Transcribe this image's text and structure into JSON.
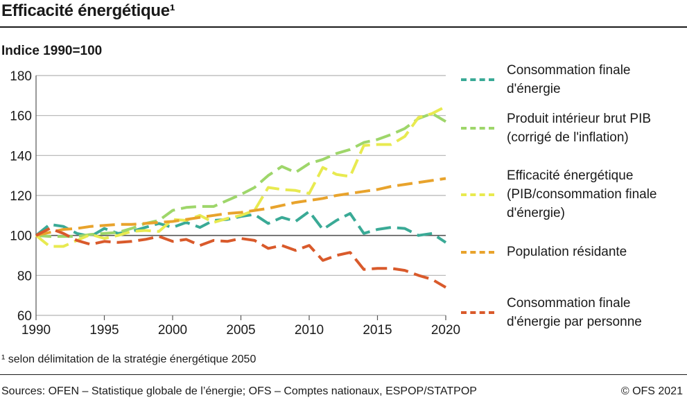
{
  "header": {
    "title": "Efficacité énergétique¹",
    "subtitle": "Indice 1990=100"
  },
  "footer": {
    "footnote": "¹ selon délimitation de la stratégie énergétique 2050",
    "source": "Sources: OFEN – Statistique globale de l’énergie; OFS – Comptes nationaux, ESPOP/STATPOP",
    "copyright": "© OFS 2021"
  },
  "chart_data": {
    "type": "line",
    "title": "Efficacité énergétique¹",
    "ylabel": "Indice 1990=100",
    "xlim": [
      1990,
      2020
    ],
    "ylim": [
      60,
      180
    ],
    "yticks": [
      60,
      80,
      100,
      120,
      140,
      160,
      180
    ],
    "xticks": [
      1990,
      1995,
      2000,
      2005,
      2010,
      2015,
      2020
    ],
    "grid": "horizontal",
    "baseline": 100,
    "legend_position": "right",
    "x": [
      1990,
      1991,
      1992,
      1993,
      1994,
      1995,
      1996,
      1997,
      1998,
      1999,
      2000,
      2001,
      2002,
      2003,
      2004,
      2005,
      2006,
      2007,
      2008,
      2009,
      2010,
      2011,
      2012,
      2013,
      2014,
      2015,
      2016,
      2017,
      2018,
      2019,
      2020
    ],
    "series": [
      {
        "name": "Consommation finale d'énergie",
        "color": "#3aaa96",
        "values": [
          100,
          105.5,
          104.5,
          101,
          99.5,
          103.5,
          101,
          102,
          104,
          106,
          104,
          106.5,
          104,
          107.5,
          108,
          109.5,
          110.5,
          106,
          109,
          107,
          112,
          103,
          107.5,
          111,
          101,
          103,
          104,
          103.5,
          100,
          101,
          96.5
        ]
      },
      {
        "name": "Produit intérieur brut PIB (corrigé de l'inflation)",
        "color": "#9ed66a",
        "values": [
          100,
          99.5,
          99.5,
          99.5,
          100.5,
          101,
          101.5,
          103.5,
          106,
          107.5,
          112.5,
          114,
          114.5,
          114.5,
          117.5,
          120.5,
          124,
          130,
          134.5,
          131.5,
          136,
          138,
          141,
          143,
          146.5,
          148,
          150.5,
          153.5,
          158.5,
          161,
          157
        ]
      },
      {
        "name": "Efficacité énergétique (PIB/consommation finale d'énergie)",
        "color": "#e8ea50",
        "values": [
          100,
          94.5,
          94.5,
          97.5,
          100.5,
          98.5,
          100,
          102,
          102.5,
          102,
          108,
          107.5,
          110,
          106.5,
          108.5,
          110,
          112.5,
          124,
          123,
          122.5,
          121,
          134,
          130.5,
          129.5,
          145,
          145.5,
          145.5,
          149.5,
          159,
          161,
          164.5
        ]
      },
      {
        "name": "Population résidante",
        "color": "#e8a32c",
        "values": [
          100,
          101.5,
          103,
          103.5,
          104.5,
          105,
          105.5,
          105.5,
          106,
          106.5,
          107,
          108,
          109,
          110,
          111,
          111.5,
          112.5,
          113.5,
          115,
          116.5,
          117.5,
          118.5,
          120,
          121,
          122,
          123,
          124.5,
          125.5,
          126.5,
          127.5,
          128.5
        ]
      },
      {
        "name": "Consommation finale d'énergie par personne",
        "color": "#d95a2b",
        "values": [
          100,
          103.5,
          101,
          97.5,
          95.5,
          97,
          96.5,
          97,
          98,
          99.5,
          97,
          98,
          95,
          97.5,
          97,
          98.5,
          97.5,
          93.5,
          95,
          92.5,
          95,
          87.5,
          90,
          91.5,
          83,
          83.5,
          83.5,
          82.5,
          80,
          78,
          74
        ]
      }
    ]
  }
}
